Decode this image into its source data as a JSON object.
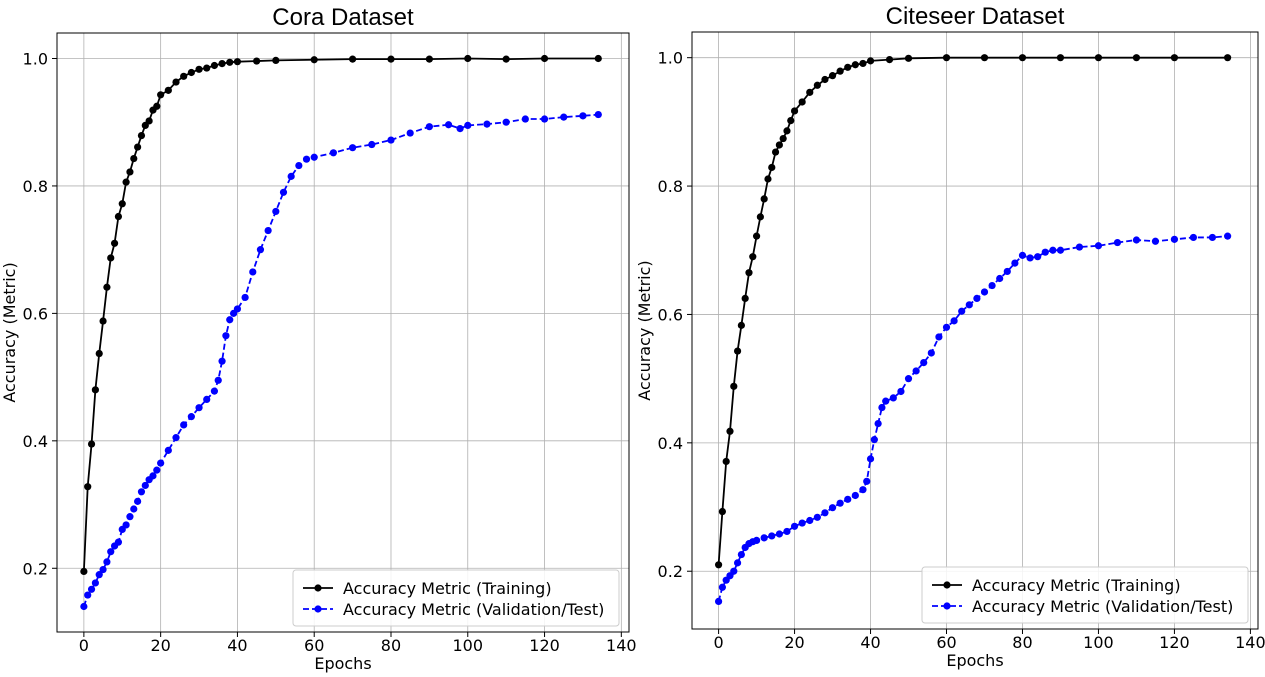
{
  "chart_data": [
    {
      "type": "line",
      "title": "Cora Dataset",
      "xlabel": "Epochs",
      "ylabel": "Accuracy (Metric)",
      "xlim": [
        -7,
        142
      ],
      "ylim": [
        0.1,
        1.04
      ],
      "xticks": [
        0,
        20,
        40,
        60,
        80,
        100,
        120,
        140
      ],
      "xtick_labels": [
        "0",
        "20",
        "40",
        "60",
        "80",
        "100",
        "120",
        "140"
      ],
      "yticks": [
        0.2,
        0.4,
        0.6,
        0.8,
        1.0
      ],
      "ytick_labels": [
        "0.2",
        "0.4",
        "0.6",
        "0.8",
        "1.0"
      ],
      "grid": true,
      "legend_position": "lower-right",
      "series": [
        {
          "name": "Accuracy Metric (Training)",
          "color": "#000000",
          "linestyle": "solid",
          "marker": "circle",
          "x": [
            0,
            1,
            2,
            3,
            4,
            5,
            6,
            7,
            8,
            9,
            10,
            11,
            12,
            13,
            14,
            15,
            16,
            17,
            18,
            19,
            20,
            22,
            24,
            26,
            28,
            30,
            32,
            34,
            36,
            38,
            40,
            45,
            50,
            60,
            70,
            80,
            90,
            100,
            110,
            120,
            134
          ],
          "y": [
            0.195,
            0.328,
            0.395,
            0.48,
            0.537,
            0.588,
            0.641,
            0.687,
            0.71,
            0.752,
            0.772,
            0.806,
            0.822,
            0.843,
            0.861,
            0.879,
            0.895,
            0.902,
            0.919,
            0.925,
            0.943,
            0.95,
            0.963,
            0.972,
            0.978,
            0.983,
            0.985,
            0.989,
            0.992,
            0.994,
            0.995,
            0.996,
            0.997,
            0.998,
            0.999,
            0.999,
            0.999,
            1.0,
            0.999,
            1.0,
            1.0
          ]
        },
        {
          "name": "Accuracy Metric (Validation/Test)",
          "color": "#0000ff",
          "linestyle": "dashed",
          "marker": "circle",
          "x": [
            0,
            1,
            2,
            3,
            4,
            5,
            6,
            7,
            8,
            9,
            10,
            11,
            12,
            13,
            14,
            15,
            16,
            17,
            18,
            19,
            20,
            22,
            24,
            26,
            28,
            30,
            32,
            34,
            35,
            36,
            37,
            38,
            39,
            40,
            42,
            44,
            46,
            48,
            50,
            52,
            54,
            56,
            58,
            60,
            65,
            70,
            75,
            80,
            85,
            90,
            95,
            98,
            100,
            105,
            110,
            115,
            120,
            125,
            130,
            134
          ],
          "y": [
            0.14,
            0.158,
            0.167,
            0.177,
            0.19,
            0.198,
            0.21,
            0.226,
            0.235,
            0.241,
            0.261,
            0.268,
            0.281,
            0.293,
            0.305,
            0.32,
            0.33,
            0.339,
            0.345,
            0.354,
            0.365,
            0.385,
            0.405,
            0.425,
            0.438,
            0.452,
            0.465,
            0.478,
            0.495,
            0.525,
            0.565,
            0.59,
            0.6,
            0.607,
            0.625,
            0.665,
            0.7,
            0.73,
            0.76,
            0.79,
            0.815,
            0.832,
            0.842,
            0.845,
            0.852,
            0.86,
            0.865,
            0.872,
            0.883,
            0.893,
            0.896,
            0.89,
            0.895,
            0.897,
            0.9,
            0.905,
            0.905,
            0.908,
            0.91,
            0.912
          ]
        }
      ]
    },
    {
      "type": "line",
      "title": "Citeseer Dataset",
      "xlabel": "Epochs",
      "ylabel": "Accuracy (Metric)",
      "xlim": [
        -7,
        142
      ],
      "ylim": [
        0.11,
        1.04
      ],
      "xticks": [
        0,
        20,
        40,
        60,
        80,
        100,
        120,
        140
      ],
      "xtick_labels": [
        "0",
        "20",
        "40",
        "60",
        "80",
        "100",
        "120",
        "140"
      ],
      "yticks": [
        0.2,
        0.4,
        0.6,
        0.8,
        1.0
      ],
      "ytick_labels": [
        "0.2",
        "0.4",
        "0.6",
        "0.8",
        "1.0"
      ],
      "grid": true,
      "legend_position": "lower-right",
      "series": [
        {
          "name": "Accuracy Metric (Training)",
          "color": "#000000",
          "linestyle": "solid",
          "marker": "circle",
          "x": [
            0,
            1,
            2,
            3,
            4,
            5,
            6,
            7,
            8,
            9,
            10,
            11,
            12,
            13,
            14,
            15,
            16,
            17,
            18,
            19,
            20,
            22,
            24,
            26,
            28,
            30,
            32,
            34,
            36,
            38,
            40,
            45,
            50,
            60,
            70,
            80,
            90,
            100,
            110,
            120,
            134
          ],
          "y": [
            0.21,
            0.293,
            0.371,
            0.418,
            0.488,
            0.543,
            0.583,
            0.625,
            0.665,
            0.69,
            0.722,
            0.752,
            0.78,
            0.811,
            0.829,
            0.853,
            0.864,
            0.874,
            0.886,
            0.902,
            0.917,
            0.931,
            0.946,
            0.957,
            0.966,
            0.972,
            0.979,
            0.985,
            0.989,
            0.991,
            0.995,
            0.997,
            0.999,
            1.0,
            1.0,
            1.0,
            1.0,
            1.0,
            1.0,
            1.0,
            1.0
          ]
        },
        {
          "name": "Accuracy Metric (Validation/Test)",
          "color": "#0000ff",
          "linestyle": "dashed",
          "marker": "circle",
          "x": [
            0,
            1,
            2,
            3,
            4,
            5,
            6,
            7,
            8,
            9,
            10,
            12,
            14,
            16,
            18,
            20,
            22,
            24,
            26,
            28,
            30,
            32,
            34,
            36,
            38,
            39,
            40,
            41,
            42,
            43,
            44,
            46,
            48,
            50,
            52,
            54,
            56,
            58,
            60,
            62,
            64,
            66,
            68,
            70,
            72,
            74,
            76,
            78,
            80,
            82,
            84,
            86,
            88,
            90,
            95,
            100,
            105,
            110,
            115,
            120,
            125,
            130,
            134
          ],
          "y": [
            0.153,
            0.175,
            0.186,
            0.193,
            0.2,
            0.213,
            0.226,
            0.237,
            0.243,
            0.246,
            0.248,
            0.252,
            0.255,
            0.258,
            0.262,
            0.27,
            0.275,
            0.279,
            0.284,
            0.291,
            0.299,
            0.306,
            0.312,
            0.318,
            0.327,
            0.34,
            0.375,
            0.405,
            0.43,
            0.455,
            0.465,
            0.47,
            0.48,
            0.5,
            0.512,
            0.525,
            0.54,
            0.565,
            0.58,
            0.59,
            0.605,
            0.615,
            0.625,
            0.635,
            0.645,
            0.656,
            0.667,
            0.68,
            0.692,
            0.688,
            0.69,
            0.697,
            0.7,
            0.7,
            0.705,
            0.707,
            0.712,
            0.716,
            0.714,
            0.717,
            0.72,
            0.72,
            0.722
          ]
        }
      ]
    }
  ]
}
